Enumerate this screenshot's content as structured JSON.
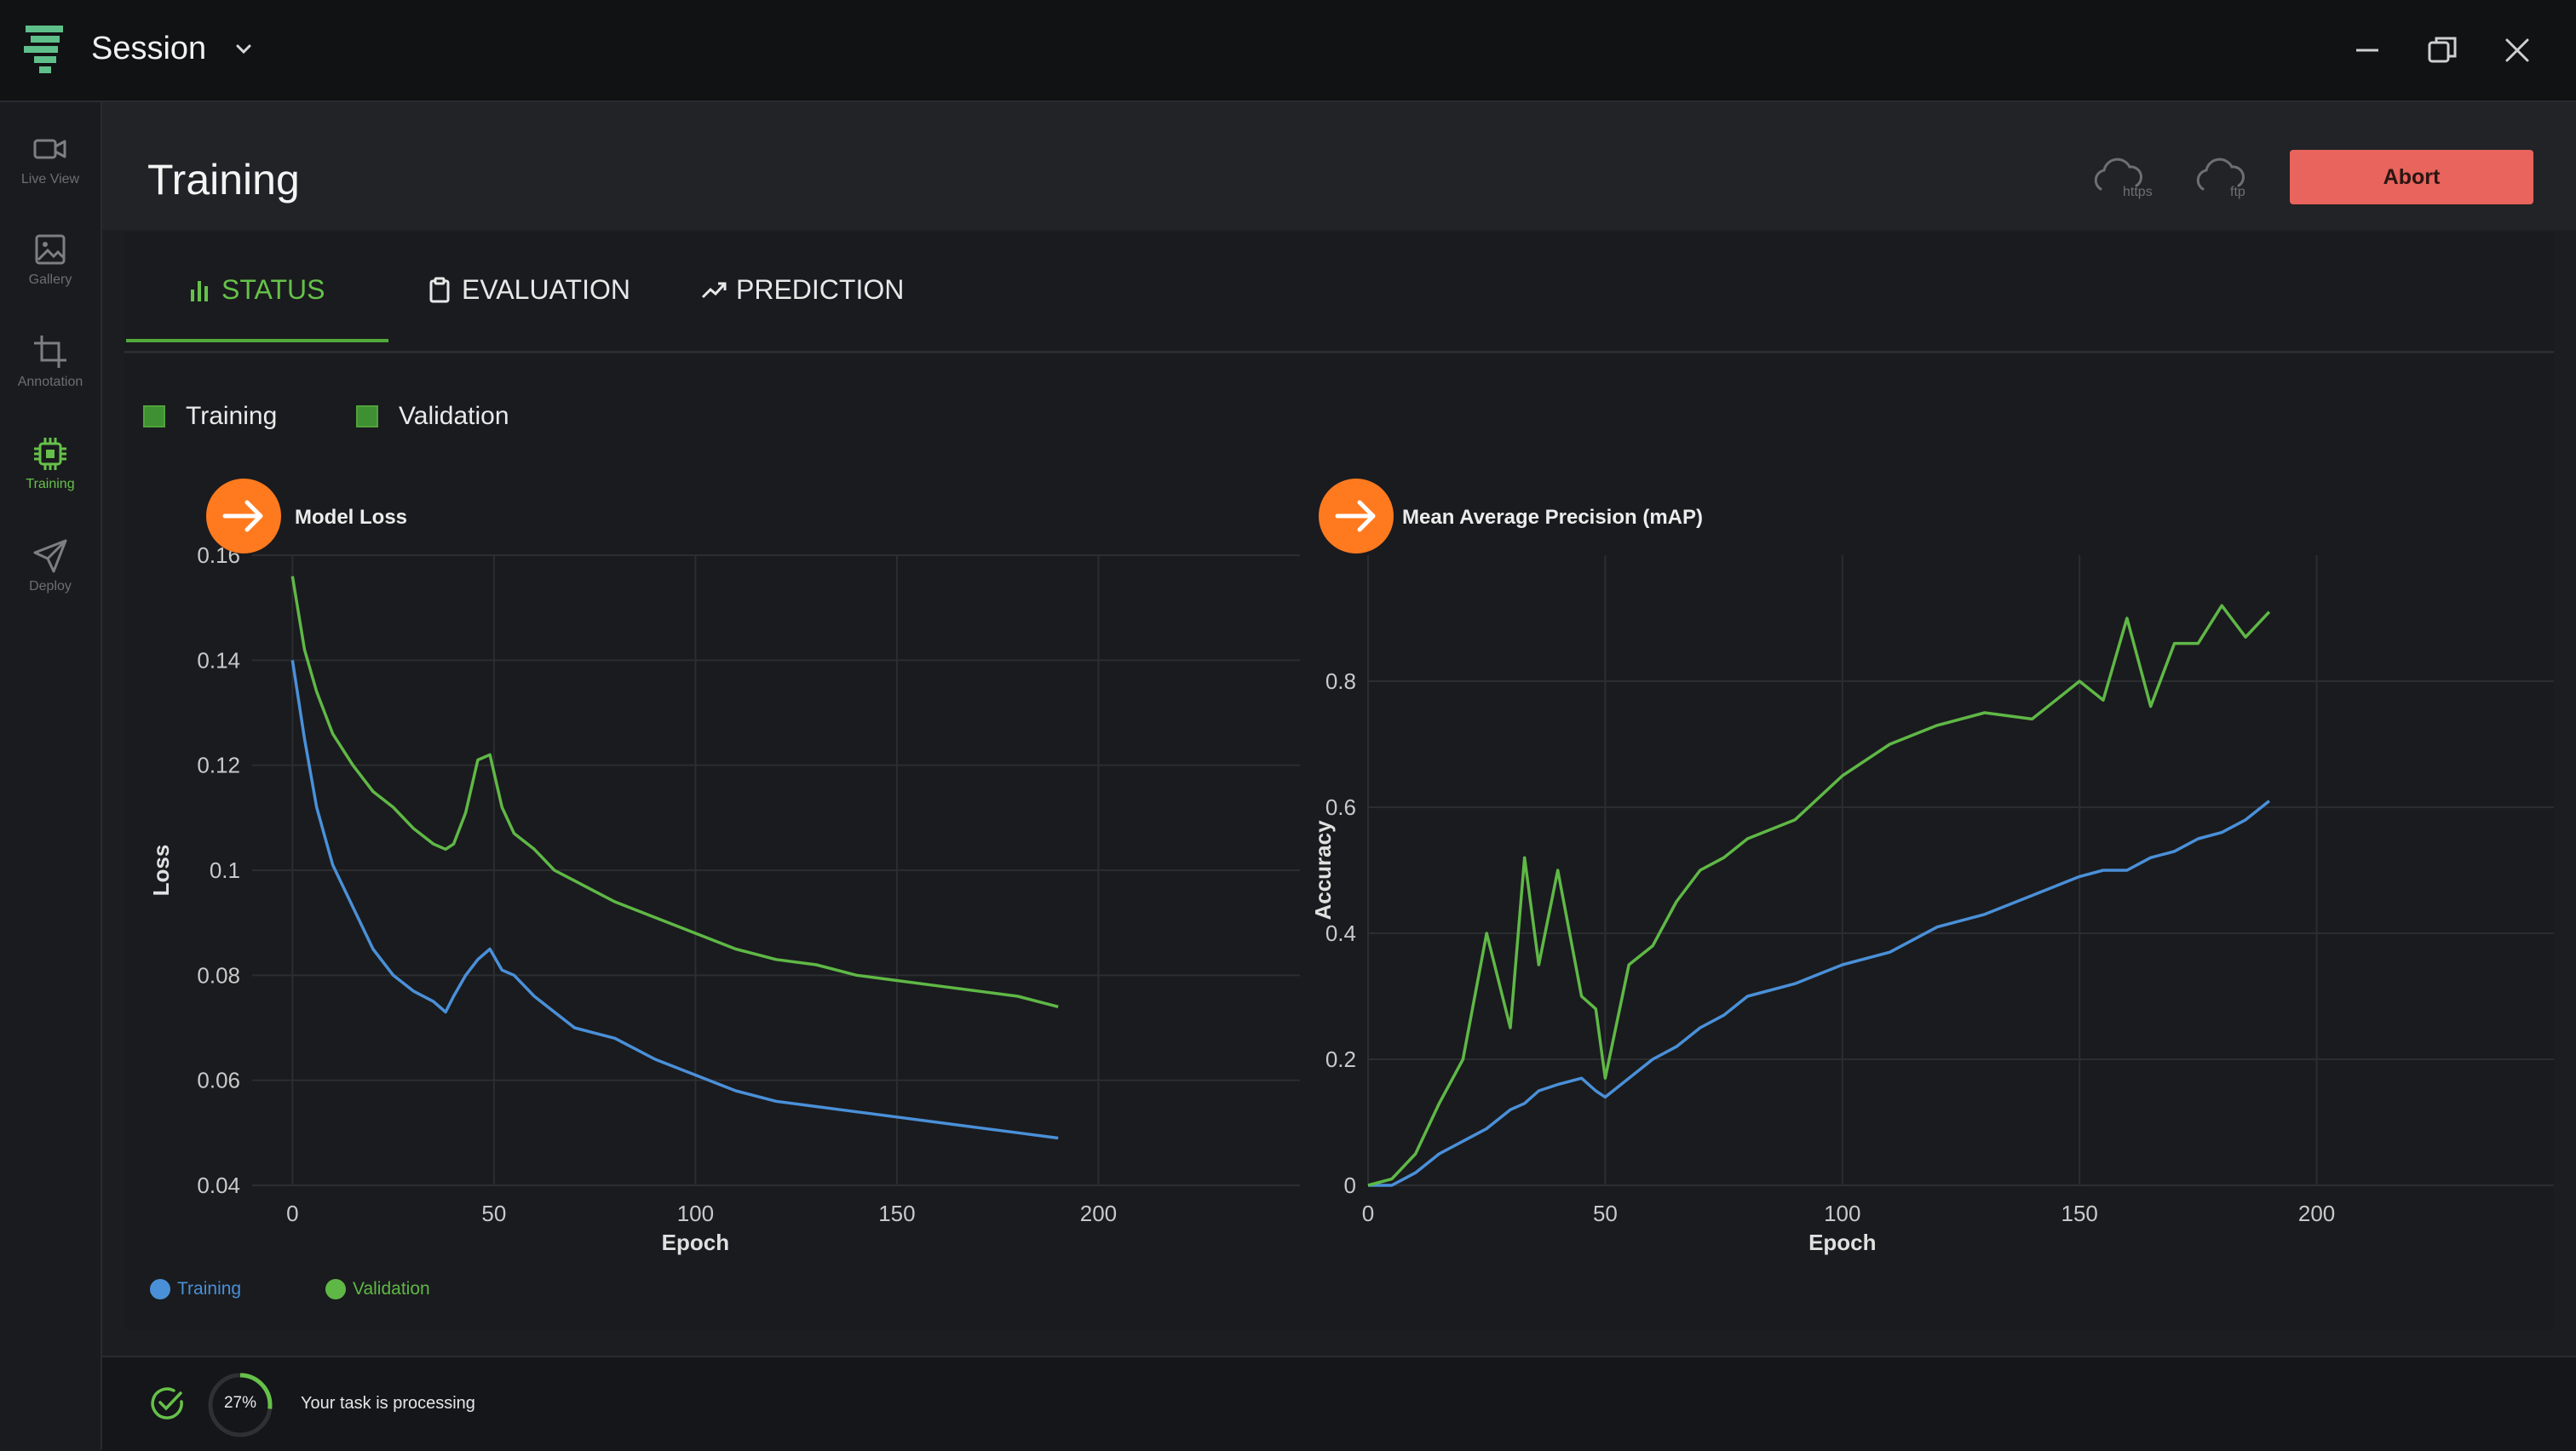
{
  "titlebar": {
    "title": "Session",
    "controls": [
      "minimize-icon",
      "restore-icon",
      "close-icon"
    ]
  },
  "sidebar": {
    "items": [
      {
        "label": "Live View",
        "icon": "video-camera-icon",
        "active": false
      },
      {
        "label": "Gallery",
        "icon": "image-icon",
        "active": false
      },
      {
        "label": "Annotation",
        "icon": "crop-icon",
        "active": false
      },
      {
        "label": "Training",
        "icon": "chip-icon",
        "active": true
      },
      {
        "label": "Deploy",
        "icon": "send-icon",
        "active": false
      }
    ]
  },
  "header": {
    "title": "Training",
    "cloud_https": "https",
    "cloud_ftp": "ftp",
    "abort_label": "Abort"
  },
  "tabs": [
    {
      "label": "STATUS",
      "icon": "bar-chart-icon",
      "active": true
    },
    {
      "label": "EVALUATION",
      "icon": "clipboard-icon",
      "active": false
    },
    {
      "label": "PREDICTION",
      "icon": "trending-up-icon",
      "active": false
    }
  ],
  "toggles": {
    "training": "Training",
    "validation": "Validation"
  },
  "legend": {
    "training": "Training",
    "validation": "Validation"
  },
  "colors": {
    "accent": "#66c14a",
    "training": "#4a90d9",
    "validation": "#5fb846",
    "abort": "#e8645c",
    "marker": "#ff7a1f"
  },
  "chart_data": [
    {
      "type": "line",
      "title": "Model Loss",
      "xlabel": "Epoch",
      "ylabel": "Loss",
      "xlim": [
        -10,
        250
      ],
      "ylim": [
        0.04,
        0.16
      ],
      "xticks": [
        "0",
        "50",
        "100",
        "150",
        "200"
      ],
      "yticks": [
        "0.04",
        "0.06",
        "0.08",
        "0.1",
        "0.12",
        "0.14",
        "0.16"
      ],
      "grid": true,
      "x": [
        0,
        3,
        6,
        10,
        15,
        20,
        25,
        30,
        35,
        38,
        40,
        43,
        46,
        49,
        52,
        55,
        60,
        65,
        70,
        75,
        80,
        90,
        100,
        110,
        120,
        130,
        140,
        150,
        160,
        170,
        180,
        190
      ],
      "series": [
        {
          "name": "Training",
          "color": "#4a90d9",
          "values": [
            0.14,
            0.125,
            0.112,
            0.101,
            0.093,
            0.085,
            0.08,
            0.077,
            0.075,
            0.073,
            0.076,
            0.08,
            0.083,
            0.085,
            0.081,
            0.08,
            0.076,
            0.073,
            0.07,
            0.069,
            0.068,
            0.064,
            0.061,
            0.058,
            0.056,
            0.055,
            0.054,
            0.053,
            0.052,
            0.051,
            0.05,
            0.049
          ]
        },
        {
          "name": "Validation",
          "color": "#5fb846",
          "values": [
            0.156,
            0.142,
            0.134,
            0.126,
            0.12,
            0.115,
            0.112,
            0.108,
            0.105,
            0.104,
            0.105,
            0.111,
            0.121,
            0.122,
            0.112,
            0.107,
            0.104,
            0.1,
            0.098,
            0.096,
            0.094,
            0.091,
            0.088,
            0.085,
            0.083,
            0.082,
            0.08,
            0.079,
            0.078,
            0.077,
            0.076,
            0.074
          ]
        }
      ]
    },
    {
      "type": "line",
      "title": "Mean Average Precision (mAP)",
      "xlabel": "Epoch",
      "ylabel": "Accuracy",
      "xlim": [
        0,
        250
      ],
      "ylim": [
        0,
        1
      ],
      "xticks": [
        "0",
        "50",
        "100",
        "150",
        "200"
      ],
      "yticks": [
        "0",
        "0.2",
        "0.4",
        "0.6",
        "0.8"
      ],
      "grid": true,
      "x": [
        0,
        5,
        10,
        15,
        20,
        25,
        30,
        33,
        36,
        40,
        45,
        48,
        50,
        55,
        60,
        65,
        70,
        75,
        80,
        90,
        100,
        110,
        120,
        130,
        140,
        150,
        155,
        160,
        165,
        170,
        175,
        180,
        185,
        190
      ],
      "series": [
        {
          "name": "Training",
          "color": "#4a90d9",
          "values": [
            0.0,
            0.0,
            0.02,
            0.05,
            0.07,
            0.09,
            0.12,
            0.13,
            0.15,
            0.16,
            0.17,
            0.15,
            0.14,
            0.17,
            0.2,
            0.22,
            0.25,
            0.27,
            0.3,
            0.32,
            0.35,
            0.37,
            0.41,
            0.43,
            0.46,
            0.49,
            0.5,
            0.5,
            0.52,
            0.53,
            0.55,
            0.56,
            0.58,
            0.61
          ]
        },
        {
          "name": "Validation",
          "color": "#5fb846",
          "values": [
            0.0,
            0.01,
            0.05,
            0.13,
            0.2,
            0.4,
            0.25,
            0.52,
            0.35,
            0.5,
            0.3,
            0.28,
            0.17,
            0.35,
            0.38,
            0.45,
            0.5,
            0.52,
            0.55,
            0.58,
            0.65,
            0.7,
            0.73,
            0.75,
            0.74,
            0.8,
            0.77,
            0.9,
            0.76,
            0.86,
            0.86,
            0.92,
            0.87,
            0.91
          ]
        }
      ]
    }
  ],
  "status": {
    "progress_percent": 27,
    "progress_label": "27%",
    "message": "Your task is processing"
  }
}
